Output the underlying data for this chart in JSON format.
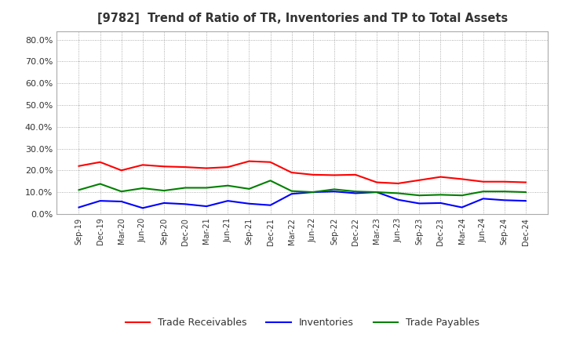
{
  "title": "[9782]  Trend of Ratio of TR, Inventories and TP to Total Assets",
  "x_labels": [
    "Sep-19",
    "Dec-19",
    "Mar-20",
    "Jun-20",
    "Sep-20",
    "Dec-20",
    "Mar-21",
    "Jun-21",
    "Sep-21",
    "Dec-21",
    "Mar-22",
    "Jun-22",
    "Sep-22",
    "Dec-22",
    "Mar-23",
    "Jun-23",
    "Sep-23",
    "Dec-23",
    "Mar-24",
    "Jun-24",
    "Sep-24",
    "Dec-24"
  ],
  "trade_receivables": [
    0.22,
    0.238,
    0.2,
    0.225,
    0.218,
    0.215,
    0.21,
    0.215,
    0.242,
    0.238,
    0.19,
    0.18,
    0.178,
    0.18,
    0.145,
    0.14,
    0.155,
    0.17,
    0.16,
    0.148,
    0.148,
    0.145
  ],
  "inventories": [
    0.03,
    0.06,
    0.057,
    0.027,
    0.05,
    0.045,
    0.035,
    0.06,
    0.047,
    0.04,
    0.092,
    0.1,
    0.103,
    0.095,
    0.1,
    0.065,
    0.048,
    0.05,
    0.03,
    0.07,
    0.063,
    0.06
  ],
  "trade_payables": [
    0.11,
    0.138,
    0.103,
    0.118,
    0.107,
    0.12,
    0.12,
    0.13,
    0.115,
    0.153,
    0.105,
    0.1,
    0.113,
    0.103,
    0.1,
    0.095,
    0.085,
    0.088,
    0.085,
    0.103,
    0.103,
    0.1
  ],
  "tr_color": "#ff0000",
  "inv_color": "#0000ff",
  "tp_color": "#008000",
  "ylim": [
    0.0,
    0.84
  ],
  "yticks": [
    0.0,
    0.1,
    0.2,
    0.3,
    0.4,
    0.5,
    0.6,
    0.7,
    0.8
  ],
  "background_color": "#ffffff",
  "grid_color": "#999999",
  "title_color": "#333333",
  "legend_labels": [
    "Trade Receivables",
    "Inventories",
    "Trade Payables"
  ]
}
